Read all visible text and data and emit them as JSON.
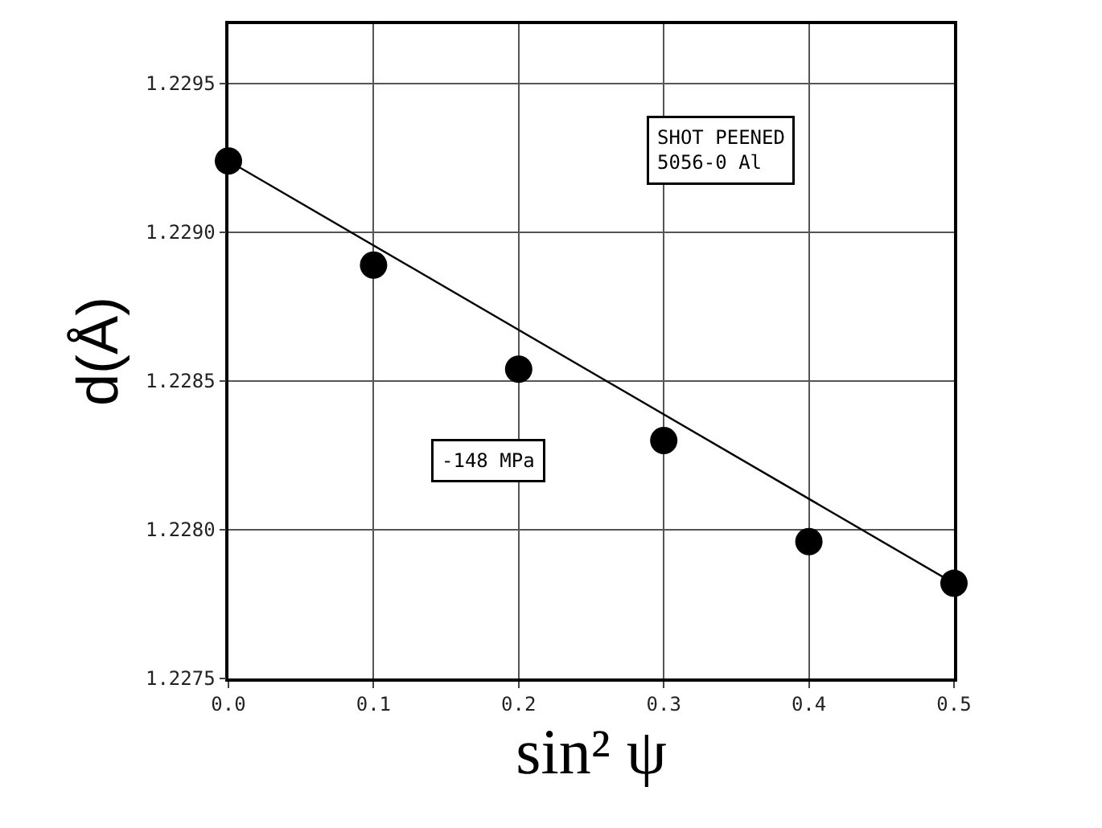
{
  "chart_data": {
    "type": "scatter",
    "xlabel": "sin² ψ",
    "ylabel": "d(Å)",
    "x": [
      0,
      0.1,
      0.2,
      0.3,
      0.4,
      0.5
    ],
    "series": [
      {
        "color": "#000000",
        "values": [
          1.22924,
          1.22889,
          1.22854,
          1.2283,
          1.22796,
          1.22782
        ]
      },
      {
        "type": "line",
        "color": "#000000",
        "x": [
          0,
          0.5
        ],
        "values": [
          1.22924,
          1.22782
        ],
        "marker": "none"
      }
    ],
    "xlim": [
      0,
      0.5
    ],
    "xticks": [
      {
        "value": 0,
        "label": "0.0"
      },
      0.1,
      0.2,
      0.3,
      0.4,
      0.5
    ],
    "ylim": [
      1.2275,
      1.2297
    ],
    "yticks": [
      1.2275,
      {
        "value": 1.228,
        "label": "1.2280"
      },
      1.2285,
      {
        "value": 1.229,
        "label": "1.2290"
      },
      1.2295
    ],
    "grid": true,
    "marker": "circle",
    "annotations": [
      "SHOT PEENED\n5056-0 Al",
      "-148 MPa"
    ]
  }
}
